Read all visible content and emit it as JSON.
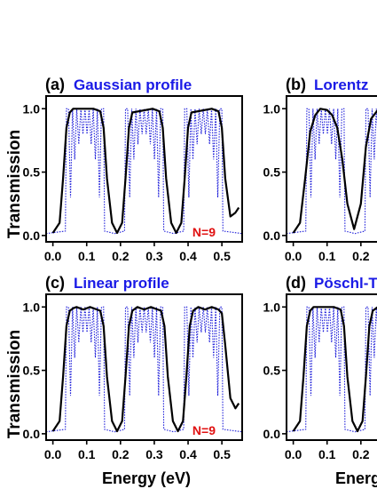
{
  "figure": {
    "ylabel": "Transmission",
    "xlabel": "Energy  (eV)",
    "xlabel_cut": "Energ",
    "annotation": "N=9"
  },
  "colors": {
    "solid": "#000000",
    "dotted": "#1c1cd9",
    "tag": "#1a1ae6",
    "annotation": "#e01010"
  },
  "chart_data": [
    {
      "type": "line",
      "tag": "(a)",
      "title": "Gaussian profile",
      "xlim": [
        -0.02,
        0.56
      ],
      "ylim": [
        -0.05,
        1.1
      ],
      "xticks": [
        "0.0",
        "0.1",
        "0.2",
        "0.3",
        "0.4",
        "0.5"
      ],
      "yticks": [
        "0.0",
        "0.5",
        "1.0"
      ],
      "annotation": "N=9",
      "bands": [
        [
          0.04,
          0.15
        ],
        [
          0.215,
          0.325
        ],
        [
          0.39,
          0.5
        ]
      ],
      "series": [
        {
          "style": "solid",
          "x": [
            0.0,
            0.02,
            0.03,
            0.04,
            0.05,
            0.06,
            0.12,
            0.14,
            0.15,
            0.16,
            0.175,
            0.19,
            0.205,
            0.215,
            0.225,
            0.235,
            0.295,
            0.315,
            0.325,
            0.335,
            0.35,
            0.365,
            0.38,
            0.39,
            0.4,
            0.41,
            0.47,
            0.49,
            0.5,
            0.51,
            0.525,
            0.54,
            0.55
          ],
          "y": [
            0.02,
            0.1,
            0.45,
            0.85,
            0.97,
            1.0,
            1.0,
            0.98,
            0.85,
            0.45,
            0.1,
            0.02,
            0.1,
            0.45,
            0.85,
            0.97,
            1.0,
            0.98,
            0.85,
            0.45,
            0.1,
            0.02,
            0.1,
            0.45,
            0.85,
            0.97,
            1.0,
            0.98,
            0.85,
            0.45,
            0.15,
            0.18,
            0.22
          ]
        },
        {
          "style": "dotted",
          "type": "oscillation",
          "minima": [
            0.3,
            0.6,
            0.72,
            0.8,
            0.8,
            0.72,
            0.6,
            0.3
          ]
        }
      ]
    },
    {
      "type": "line",
      "tag": "(b)",
      "title": "Lorentz",
      "xlim": [
        -0.02,
        0.56
      ],
      "ylim": [
        -0.05,
        1.1
      ],
      "xticks": [
        "0.0",
        "0.1",
        "0.2"
      ],
      "yticks": [
        "0.0",
        "0.5",
        "1.0"
      ],
      "bands": [
        [
          0.04,
          0.15
        ],
        [
          0.215,
          0.325
        ],
        [
          0.39,
          0.5
        ]
      ],
      "series": [
        {
          "style": "solid",
          "x": [
            0.0,
            0.02,
            0.035,
            0.05,
            0.065,
            0.08,
            0.1,
            0.115,
            0.13,
            0.145,
            0.16,
            0.18,
            0.2,
            0.215,
            0.23,
            0.25
          ],
          "y": [
            0.02,
            0.1,
            0.45,
            0.82,
            0.95,
            1.0,
            0.99,
            0.95,
            0.85,
            0.6,
            0.25,
            0.05,
            0.25,
            0.7,
            0.92,
            0.99
          ]
        },
        {
          "style": "dotted",
          "type": "oscillation",
          "minima": [
            0.3,
            0.6,
            0.72,
            0.8,
            0.8,
            0.72,
            0.6,
            0.3
          ]
        }
      ]
    },
    {
      "type": "line",
      "tag": "(c)",
      "title": "Linear profile",
      "xlim": [
        -0.02,
        0.56
      ],
      "ylim": [
        -0.05,
        1.1
      ],
      "xticks": [
        "0.0",
        "0.1",
        "0.2",
        "0.3",
        "0.4",
        "0.5"
      ],
      "yticks": [
        "0.0",
        "0.5",
        "1.0"
      ],
      "annotation": "N=9",
      "bands": [
        [
          0.04,
          0.15
        ],
        [
          0.215,
          0.325
        ],
        [
          0.39,
          0.5
        ]
      ],
      "series": [
        {
          "style": "solid",
          "x": [
            0.0,
            0.02,
            0.03,
            0.04,
            0.05,
            0.06,
            0.07,
            0.09,
            0.11,
            0.13,
            0.14,
            0.15,
            0.16,
            0.175,
            0.19,
            0.205,
            0.215,
            0.225,
            0.235,
            0.25,
            0.27,
            0.29,
            0.31,
            0.32,
            0.33,
            0.34,
            0.355,
            0.37,
            0.385,
            0.395,
            0.405,
            0.415,
            0.43,
            0.45,
            0.47,
            0.49,
            0.5,
            0.51,
            0.525,
            0.54,
            0.55
          ],
          "y": [
            0.02,
            0.1,
            0.45,
            0.85,
            0.97,
            0.99,
            1.0,
            0.98,
            1.0,
            0.98,
            0.97,
            0.85,
            0.45,
            0.1,
            0.02,
            0.1,
            0.45,
            0.85,
            0.97,
            1.0,
            0.98,
            1.0,
            0.98,
            0.97,
            0.85,
            0.45,
            0.1,
            0.02,
            0.1,
            0.45,
            0.85,
            0.97,
            1.0,
            0.98,
            1.0,
            0.98,
            0.95,
            0.7,
            0.28,
            0.2,
            0.24
          ]
        },
        {
          "style": "dotted",
          "type": "oscillation",
          "minima": [
            0.3,
            0.6,
            0.72,
            0.8,
            0.8,
            0.72,
            0.6,
            0.3
          ]
        }
      ]
    },
    {
      "type": "line",
      "tag": "(d)",
      "title": "Pöschl-T",
      "xlim": [
        -0.02,
        0.56
      ],
      "ylim": [
        -0.05,
        1.1
      ],
      "xticks": [
        "0.0",
        "0.1",
        "0.2"
      ],
      "yticks": [
        "0.0",
        "0.5",
        "1.0"
      ],
      "bands": [
        [
          0.04,
          0.15
        ],
        [
          0.215,
          0.325
        ],
        [
          0.39,
          0.5
        ]
      ],
      "series": [
        {
          "style": "solid",
          "x": [
            0.0,
            0.02,
            0.03,
            0.04,
            0.05,
            0.06,
            0.12,
            0.14,
            0.15,
            0.16,
            0.175,
            0.19,
            0.205,
            0.215,
            0.225,
            0.235,
            0.25
          ],
          "y": [
            0.02,
            0.1,
            0.45,
            0.85,
            0.97,
            1.0,
            1.0,
            0.98,
            0.85,
            0.45,
            0.1,
            0.02,
            0.1,
            0.45,
            0.85,
            0.97,
            1.0
          ]
        },
        {
          "style": "dotted",
          "type": "oscillation",
          "minima": [
            0.3,
            0.6,
            0.72,
            0.8,
            0.8,
            0.72,
            0.6,
            0.3
          ]
        }
      ]
    }
  ]
}
